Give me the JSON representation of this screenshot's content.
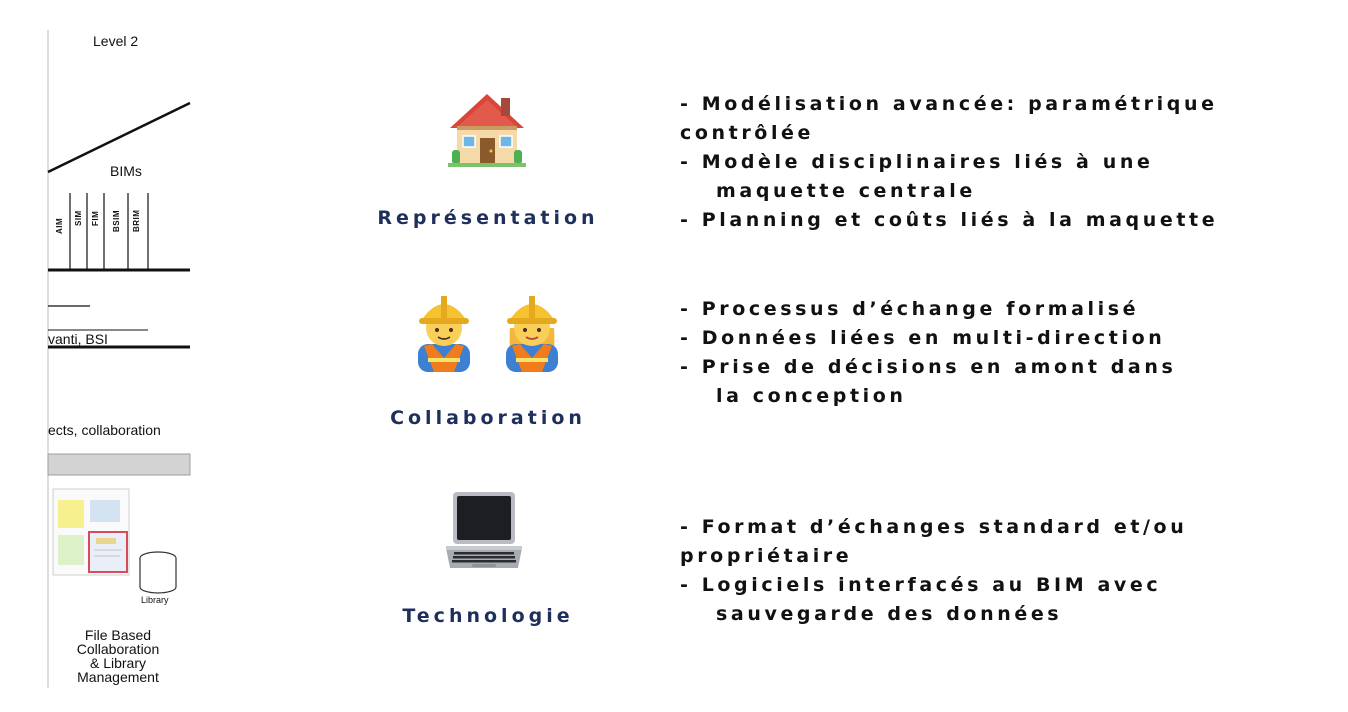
{
  "diagram": {
    "level_label": "Level 2",
    "bims_label": "BIMs",
    "bim_columns": [
      "AIM",
      "SIM",
      "FIM",
      "BSIM",
      "BRIM"
    ],
    "standards_label": "vanti, BSI",
    "objects_label": "ects, collaboration",
    "library_label": "Library",
    "footer_lines": [
      "File Based",
      "Collaboration",
      "& Library",
      "Management"
    ]
  },
  "pillars": [
    {
      "id": "representation",
      "icon": "house-icon",
      "title": "Représentation",
      "bullets": [
        {
          "text": "- Modélisation avancée: paramétrique",
          "indent": false
        },
        {
          "text": "contrôlée",
          "indent": false
        },
        {
          "text": "-  Modèle disciplinaires liés à une",
          "indent": false
        },
        {
          "text": "maquette centrale",
          "indent": true
        },
        {
          "text": "-  Planning et coûts liés à la maquette",
          "indent": false
        }
      ]
    },
    {
      "id": "collaboration",
      "icon": "construction-worker-icon",
      "title": "Collaboration",
      "bullets": [
        {
          "text": "- Processus d’échange formalisé",
          "indent": false
        },
        {
          "text": "-  Données liées en multi-direction",
          "indent": false
        },
        {
          "text": "-  Prise de décisions en amont dans",
          "indent": false
        },
        {
          "text": "la conception",
          "indent": true
        }
      ]
    },
    {
      "id": "technologie",
      "icon": "laptop-icon",
      "title": "Technologie",
      "bullets": [
        {
          "text": "- Format d’échanges standard et/ou",
          "indent": false
        },
        {
          "text": "propriétaire",
          "indent": false
        },
        {
          "text": "-  Logiciels interfacés au BIM avec",
          "indent": false
        },
        {
          "text": "sauvegarde des données",
          "indent": true
        }
      ]
    }
  ],
  "colors": {
    "title_navy": "#1f2f5c",
    "text": "#111111",
    "hardhat_yellow": "#f6c232",
    "vest_orange": "#f07c1e",
    "house_red": "#d8463a"
  }
}
